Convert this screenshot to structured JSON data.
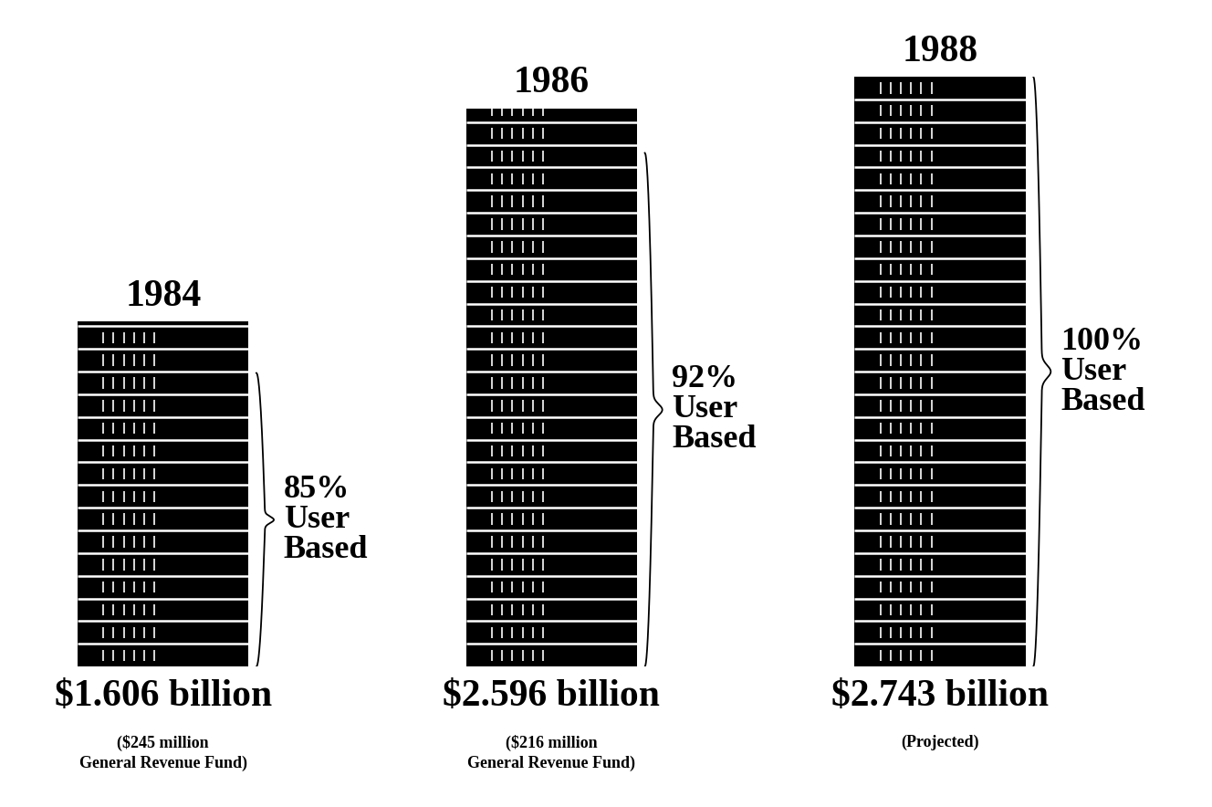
{
  "chart_data": {
    "type": "bar",
    "categories": [
      "1984",
      "1986",
      "1988"
    ],
    "values": [
      1.606,
      2.596,
      2.743
    ],
    "value_labels": [
      "$1.606 billion",
      "$2.596 billion",
      "$2.743 billion"
    ],
    "data_labels": true,
    "color": "#000000",
    "tick_labels": false,
    "user_based": [
      85,
      92,
      100
    ],
    "user_based_labels": [
      "85%\nUser\nBased",
      "92%\nUser\nBased",
      "100%\nUser\nBased"
    ],
    "notes": [
      "($245 million\nGeneral Revenue Fund)",
      "($216 million\nGeneral Revenue Fund)",
      "(Projected)"
    ]
  }
}
